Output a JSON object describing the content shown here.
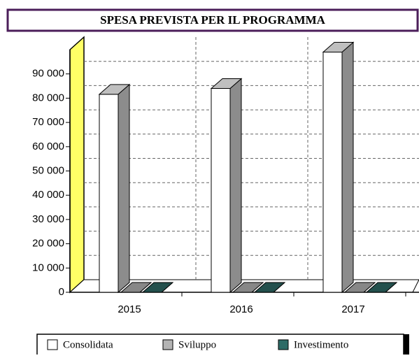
{
  "chart_data": {
    "type": "bar3d",
    "title": "SPESA PREVISTA PER IL PROGRAMMA",
    "categories": [
      "2015",
      "2016",
      "2017"
    ],
    "series": [
      {
        "name": "Consolidata",
        "color": "#ffffff",
        "values": [
          81600,
          84000,
          99000
        ]
      },
      {
        "name": "Sviluppo",
        "color": "#b4b4b4",
        "values": [
          0,
          0,
          0
        ]
      },
      {
        "name": "Investimento",
        "color": "#2e6b66",
        "values": [
          0,
          0,
          0
        ]
      }
    ],
    "ylim": [
      0,
      100000
    ],
    "yticks": [
      0,
      {
        "value": 10000,
        "label": "10 000"
      },
      {
        "value": 20000,
        "label": "20 000"
      },
      {
        "value": 30000,
        "label": "30 000"
      },
      {
        "value": 40000,
        "label": "40 000"
      },
      {
        "value": 50000,
        "label": "50 000"
      },
      {
        "value": 60000,
        "label": "60 000"
      },
      {
        "value": 70000,
        "label": "70 000"
      },
      {
        "value": 80000,
        "label": "80 000"
      },
      {
        "value": 90000,
        "label": "90 000"
      }
    ],
    "grid": true,
    "wall_color": "#ffff66",
    "legend": "bottom"
  }
}
